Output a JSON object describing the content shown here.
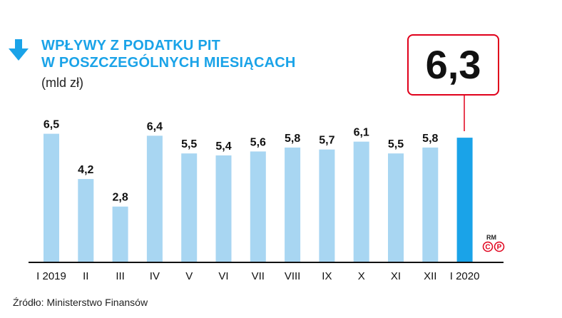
{
  "title_line1": "WPŁYWY Z PODATKU PIT",
  "title_line2": "W POSZCZEGÓLNYCH MIESIĄCACH",
  "unit": "(mld zł)",
  "callout_value": "6,3",
  "source": "Źródło: Ministerstwo Finansów",
  "badge_text": "RM",
  "badge_icons": [
    "copyright-icon",
    "p-circle-icon"
  ],
  "colors": {
    "bar": "#a8d6f2",
    "highlight_bar": "#1aa3e8",
    "title": "#1aa3e8",
    "callout_border": "#e0001b"
  },
  "chart_data": {
    "type": "bar",
    "categories": [
      "I 2019",
      "II",
      "III",
      "IV",
      "V",
      "VI",
      "VII",
      "VIII",
      "IX",
      "X",
      "XI",
      "XII",
      "I 2020"
    ],
    "values": [
      6.5,
      4.2,
      2.8,
      6.4,
      5.5,
      5.4,
      5.6,
      5.8,
      5.7,
      6.1,
      5.5,
      5.8,
      6.3
    ],
    "labels": [
      "6,5",
      "4,2",
      "2,8",
      "6,4",
      "5,5",
      "5,4",
      "5,6",
      "5,8",
      "5,7",
      "6,1",
      "5,5",
      "5,8",
      ""
    ],
    "highlight_index": 12,
    "title": "WPŁYWY Z PODATKU PIT W POSZCZEGÓLNYCH MIESIĄCACH",
    "ylabel": "(mld zł)",
    "ylim": [
      0,
      6.9
    ],
    "grid": false
  }
}
